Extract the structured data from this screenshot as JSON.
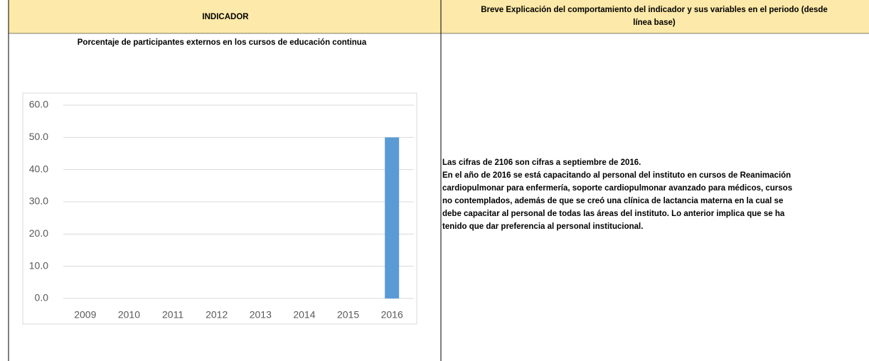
{
  "header": {
    "indicator": "INDICADOR",
    "explanation_title": [
      "Breve Explicación del comportamiento del indicador y sus variables en el periodo (desde",
      "línea base)"
    ]
  },
  "chart_data": {
    "type": "bar",
    "title": "Porcentaje de participantes externos en los cursos de educación continua",
    "categories": [
      "2009",
      "2010",
      "2011",
      "2012",
      "2013",
      "2014",
      "2015",
      "2016"
    ],
    "values": [
      0,
      0,
      0,
      0,
      0,
      0,
      0,
      50
    ],
    "color": "#5b9bd5",
    "ylim": [
      0,
      60
    ],
    "yticks": [
      {
        "value": 0,
        "label": "0.0"
      },
      {
        "value": 10,
        "label": "10.0"
      },
      {
        "value": 20,
        "label": "20.0"
      },
      {
        "value": 30,
        "label": "30.0"
      },
      {
        "value": 40,
        "label": "40.0"
      },
      {
        "value": 50,
        "label": "50.0"
      },
      {
        "value": 60,
        "label": "60.0"
      }
    ],
    "grid": true
  },
  "explanation": [
    "Las cifras de 2106 son cifras a septiembre de 2016.",
    "En el año de 2016 se está capacitando al personal del instituto en cursos de Reanimación",
    "cardiopulmonar para enfermería, soporte cardiopulmonar avanzado para médicos, cursos",
    "no contemplados, además de que se creó una clínica de lactancia materna en la cual se",
    "debe capacitar al personal de todas las áreas del instituto.  Lo anterior implica que se ha",
    "tenido que dar preferencia al personal institucional."
  ]
}
